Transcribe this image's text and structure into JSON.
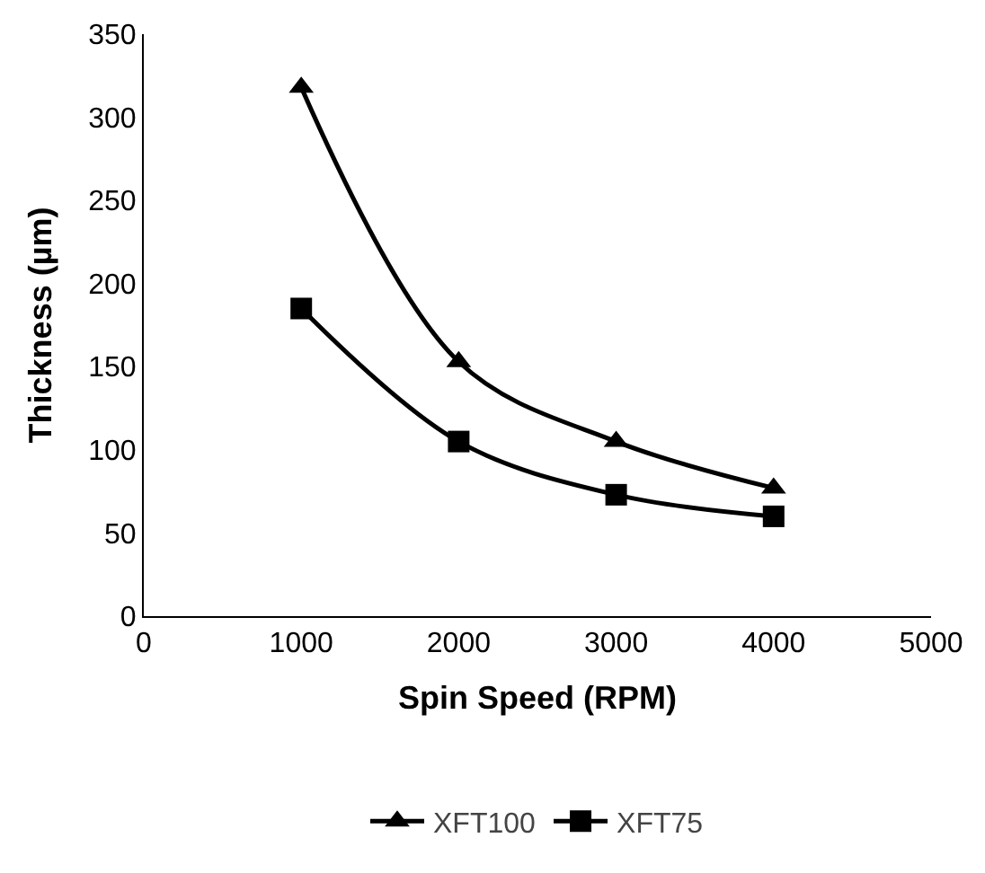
{
  "chart_data": {
    "type": "line",
    "xlabel": "Spin Speed (RPM)",
    "ylabel": "Thickness (µm)",
    "x": [
      1000,
      2000,
      3000,
      4000
    ],
    "series": [
      {
        "name": "XFT100",
        "color": "#000000",
        "values": [
          318,
          153,
          105,
          77
        ],
        "marker": "triangle"
      },
      {
        "name": "XFT75",
        "color": "#000000",
        "values": [
          185,
          105,
          73,
          60
        ],
        "marker": "square"
      }
    ],
    "xlim": [
      0,
      5000
    ],
    "xticks": [
      0,
      1000,
      2000,
      3000,
      4000,
      5000
    ],
    "ylim": [
      0,
      350
    ],
    "yticks": [
      0,
      50,
      100,
      150,
      200,
      250,
      300,
      350
    ],
    "legend": "bottom",
    "line_style": "solid"
  }
}
